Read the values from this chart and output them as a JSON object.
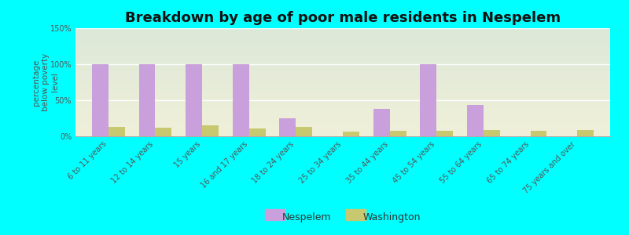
{
  "title": "Breakdown by age of poor male residents in Nespelem",
  "ylabel": "percentage\nbelow poverty\nlevel",
  "categories": [
    "6 to 11 years",
    "12 to 14 years",
    "15 years",
    "16 and 17 years",
    "18 to 24 years",
    "25 to 34 years",
    "35 to 44 years",
    "45 to 54 years",
    "55 to 64 years",
    "65 to 74 years",
    "75 years and over"
  ],
  "nespelem": [
    100,
    100,
    100,
    100,
    25,
    0,
    38,
    100,
    44,
    0,
    0
  ],
  "washington": [
    13,
    12,
    15,
    11,
    13,
    7,
    8,
    8,
    9,
    8,
    9
  ],
  "nespelem_color": "#c9a0dc",
  "washington_color": "#c8c870",
  "background_color": "#00ffff",
  "plot_bg_top": "#dce8d8",
  "plot_bg_bottom": "#f0f0d8",
  "ylim": [
    0,
    150
  ],
  "yticks": [
    0,
    50,
    100,
    150
  ],
  "ytick_labels": [
    "0%",
    "50%",
    "100%",
    "150%"
  ],
  "bar_width": 0.35,
  "title_fontsize": 13,
  "ylabel_fontsize": 7.5,
  "tick_fontsize": 7,
  "legend_fontsize": 9,
  "legend_label_nespelem": "Nespelem",
  "legend_label_washington": "Washington"
}
